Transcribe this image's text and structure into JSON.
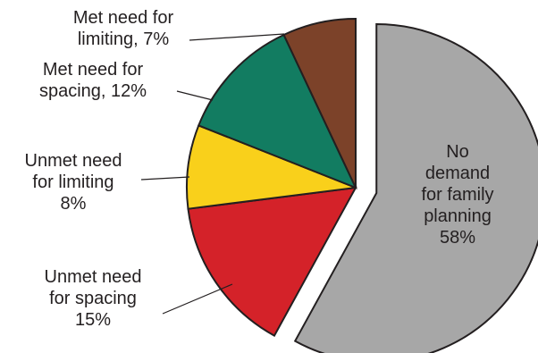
{
  "chart_data": {
    "type": "pie",
    "title": "",
    "exploded_slice": 0,
    "slices": [
      {
        "label_lines": [
          "No",
          "demand",
          "for family",
          "planning",
          "58%"
        ],
        "value": 58,
        "color": "#a7a7a7"
      },
      {
        "label_lines": [
          "Unmet need",
          "for spacing",
          "15%"
        ],
        "value": 15,
        "color": "#d42229"
      },
      {
        "label_lines": [
          "Unmet need",
          "for limiting",
          "8%"
        ],
        "value": 8,
        "color": "#f9d01b"
      },
      {
        "label_lines": [
          "Met need for",
          "spacing, 12%"
        ],
        "value": 12,
        "color": "#127c61"
      },
      {
        "label_lines": [
          "Met need for",
          "limiting, 7%"
        ],
        "value": 7,
        "color": "#7c4229"
      }
    ]
  }
}
